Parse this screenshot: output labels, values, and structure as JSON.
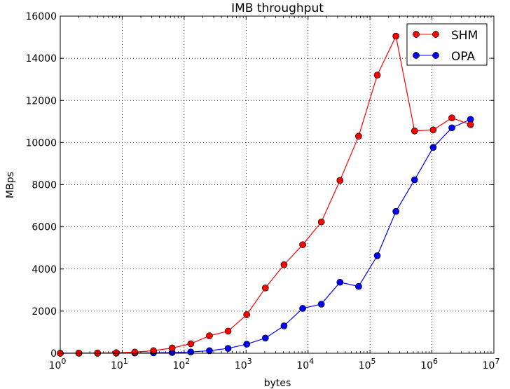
{
  "chart_data": {
    "type": "line",
    "title": "IMB throughput",
    "xlabel": "bytes",
    "ylabel": "MBps",
    "xscale": "log",
    "xlim": [
      1,
      10000000
    ],
    "ylim": [
      0,
      16000
    ],
    "grid": true,
    "legend": "top-right",
    "x_tick_labels": [
      {
        "base": "10",
        "exp": "0"
      },
      {
        "base": "10",
        "exp": "1"
      },
      {
        "base": "10",
        "exp": "2"
      },
      {
        "base": "10",
        "exp": "3"
      },
      {
        "base": "10",
        "exp": "4"
      },
      {
        "base": "10",
        "exp": "5"
      },
      {
        "base": "10",
        "exp": "6"
      },
      {
        "base": "10",
        "exp": "7"
      }
    ],
    "y_tick_labels": [
      "0",
      "2000",
      "4000",
      "6000",
      "8000",
      "10000",
      "12000",
      "14000",
      "16000"
    ],
    "x": [
      1,
      2,
      4,
      8,
      16,
      32,
      64,
      128,
      256,
      512,
      1024,
      2048,
      4096,
      8192,
      16384,
      32768,
      65536,
      131072,
      262144,
      524288,
      1048576,
      2097152,
      4194304
    ],
    "series": [
      {
        "name": "SHM",
        "color": "#ff0000",
        "values": [
          0,
          10,
          15,
          25,
          55,
          120,
          250,
          450,
          830,
          1050,
          1830,
          3100,
          4200,
          5150,
          6230,
          8200,
          10300,
          13200,
          15050,
          10550,
          10600,
          11170,
          10850
        ]
      },
      {
        "name": "OPA",
        "color": "#0000ff",
        "values": [
          0,
          2,
          3,
          5,
          10,
          20,
          35,
          60,
          120,
          230,
          430,
          720,
          1300,
          2130,
          2330,
          3370,
          3170,
          4630,
          6730,
          8230,
          9770,
          10700,
          11100
        ]
      }
    ]
  }
}
